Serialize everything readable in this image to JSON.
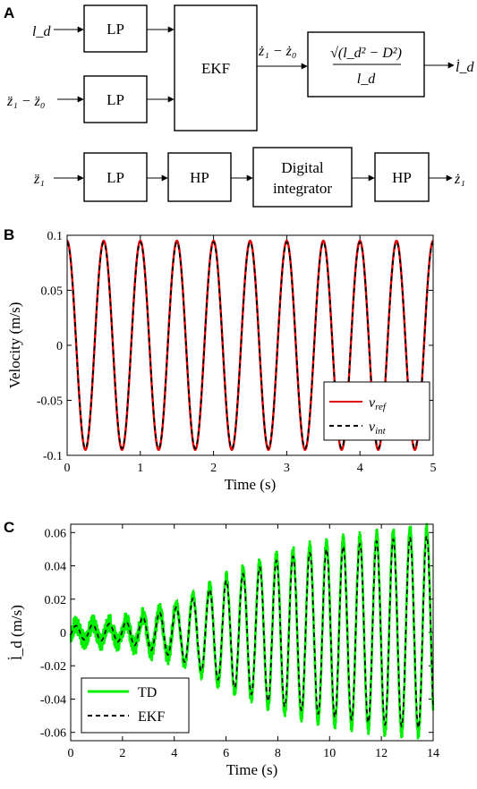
{
  "panels": {
    "a": "A",
    "b": "B",
    "c": "C"
  },
  "diagram": {
    "row1": {
      "input1": "l_d",
      "input2": "z̈₁ − z̈₀",
      "lp1": "LP",
      "lp2": "LP",
      "ekf": "EKF",
      "mid_signal": "ż₁ − ż₀",
      "formula_num": "√(l_d² − D²)",
      "formula_den": "l_d",
      "output": "l̇_d"
    },
    "row2": {
      "input": "z̈₁",
      "lp": "LP",
      "hp1": "HP",
      "integrator_line1": "Digital",
      "integrator_line2": "integrator",
      "hp2": "HP",
      "output": "ż₁"
    }
  },
  "chart_data": [
    {
      "type": "line",
      "panel": "B",
      "xlabel": "Time (s)",
      "ylabel": "Velocity (m/s)",
      "xlim": [
        0,
        5
      ],
      "ylim": [
        -0.1,
        0.1
      ],
      "xticks": [
        "0",
        "1",
        "2",
        "3",
        "4",
        "5"
      ],
      "yticks": [
        "-0.1",
        "-0.05",
        "0",
        "0.05",
        "0.1"
      ],
      "legend_position": "bottom-right",
      "series": [
        {
          "name": "v_ref",
          "color": "#e00000",
          "style": "solid",
          "function": "0.095*cos(2*pi*2*t)"
        },
        {
          "name": "v_int",
          "color": "#000000",
          "style": "dashed",
          "function": "0.095*cos(2*pi*2*t)"
        }
      ],
      "amplitude": 0.095,
      "frequency_hz": 2
    },
    {
      "type": "line",
      "panel": "C",
      "xlabel": "Time (s)",
      "ylabel": "l̇_d (m/s)",
      "xlim": [
        0,
        14
      ],
      "ylim": [
        -0.065,
        0.065
      ],
      "xticks": [
        "0",
        "2",
        "4",
        "6",
        "8",
        "10",
        "12",
        "14"
      ],
      "yticks": [
        "-0.06",
        "-0.04",
        "-0.02",
        "0",
        "0.02",
        "0.04",
        "0.06"
      ],
      "legend_position": "bottom-left",
      "series": [
        {
          "name": "TD",
          "color": "#00ee00",
          "style": "solid"
        },
        {
          "name": "EKF",
          "color": "#000000",
          "style": "dashed"
        }
      ],
      "frequency_hz": 1.55,
      "envelope": {
        "t": [
          0,
          2,
          4,
          6,
          8,
          10,
          12,
          14
        ],
        "amplitude": [
          0.004,
          0.006,
          0.015,
          0.032,
          0.045,
          0.052,
          0.057,
          0.06
        ]
      }
    }
  ]
}
